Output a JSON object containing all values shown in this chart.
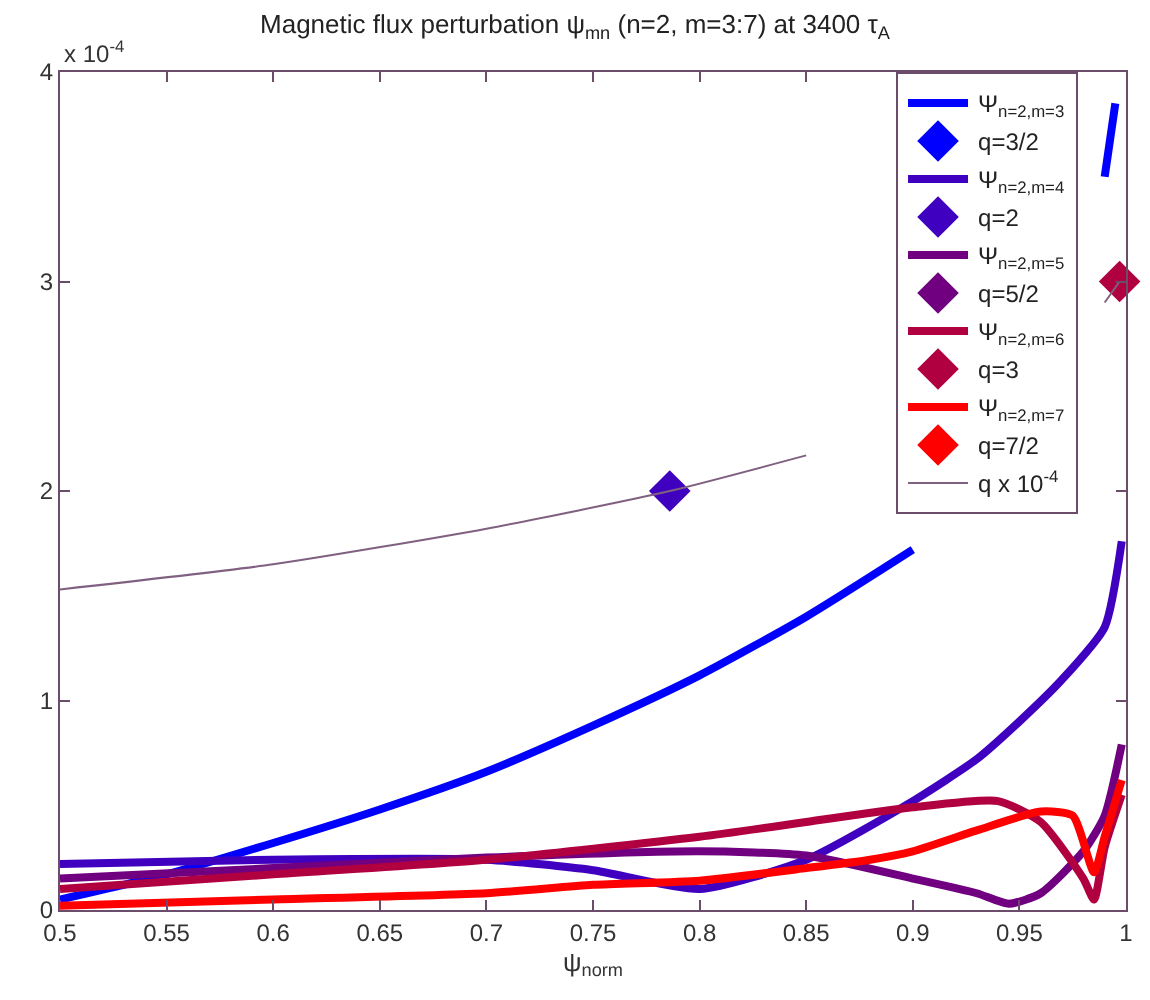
{
  "chart_data": {
    "type": "line",
    "title": "Magnetic flux perturbation ψ$_{mn}$ (n=2, m=3:7) at 3400 τ$_{A}$",
    "xlabel": "ψ$_{norm}$",
    "xlim": [
      0.5,
      1
    ],
    "xticks": [
      0.5,
      0.55,
      0.6,
      0.65,
      0.7,
      0.75,
      0.8,
      0.85,
      0.9,
      0.95,
      1
    ],
    "ylim": [
      0,
      4
    ],
    "yticks": [
      0,
      1,
      2,
      3,
      4
    ],
    "annotations": [
      "x 10$^{-4}$"
    ],
    "grid": false,
    "legend": "top right",
    "line_style": "solid",
    "series": [
      {
        "name": "Ψ$_{n=2,m=3}$",
        "marker": "none",
        "color": "#0000ff",
        "x": [
          0.5,
          0.55,
          0.6,
          0.65,
          0.7,
          0.75,
          0.8,
          0.85,
          0.9,
          0.93,
          0.96,
          0.98,
          0.99,
          0.995
        ],
        "values": [
          0.05,
          0.17,
          0.32,
          0.48,
          0.66,
          0.88,
          1.12,
          1.4,
          1.72,
          null,
          null,
          null,
          3.5,
          3.85
        ]
      },
      {
        "name": "q=3/2",
        "type": "scatter",
        "marker": "diamond",
        "color": "#0000ff",
        "x": [
          null
        ],
        "values": [
          null
        ]
      },
      {
        "name": "Ψ$_{n=2,m=4}$",
        "marker": "none",
        "color": "#4000c0",
        "x": [
          0.5,
          0.6,
          0.7,
          0.75,
          0.8,
          0.85,
          0.9,
          0.93,
          0.95,
          0.97,
          0.99,
          0.998
        ],
        "values": [
          0.22,
          0.24,
          0.24,
          0.19,
          0.1,
          0.24,
          0.52,
          0.72,
          0.9,
          1.1,
          1.35,
          1.76
        ]
      },
      {
        "name": "q=2",
        "type": "scatter",
        "marker": "diamond",
        "color": "#4000c0",
        "x": [
          0.786
        ],
        "values": [
          2
        ]
      },
      {
        "name": "Ψ$_{n=2,m=5}$",
        "marker": "none",
        "color": "#700080",
        "x": [
          0.5,
          0.6,
          0.7,
          0.8,
          0.85,
          0.9,
          0.93,
          0.945,
          0.96,
          0.98,
          0.99,
          0.998
        ],
        "values": [
          0.15,
          0.2,
          0.25,
          0.28,
          0.26,
          0.15,
          0.08,
          0.03,
          0.08,
          0.28,
          0.45,
          0.79
        ]
      },
      {
        "name": "q=5/2",
        "type": "scatter",
        "marker": "diamond",
        "color": "#700080",
        "x": [
          null
        ],
        "values": [
          null
        ]
      },
      {
        "name": "Ψ$_{n=2,m=6}$",
        "marker": "none",
        "color": "#b00040",
        "x": [
          0.5,
          0.6,
          0.7,
          0.8,
          0.85,
          0.9,
          0.94,
          0.96,
          0.98,
          0.985,
          0.99,
          0.998
        ],
        "values": [
          0.1,
          0.17,
          0.24,
          0.35,
          0.42,
          0.49,
          0.52,
          0.42,
          0.15,
          0.05,
          0.3,
          0.55
        ]
      },
      {
        "name": "q=3",
        "type": "scatter",
        "marker": "diamond",
        "color": "#b00040",
        "x": [
          0.997
        ],
        "values": [
          3
        ]
      },
      {
        "name": "Ψ$_{n=2,m=7}$",
        "marker": "none",
        "color": "#ff0000",
        "x": [
          0.5,
          0.6,
          0.7,
          0.75,
          0.8,
          0.85,
          0.88,
          0.9,
          0.93,
          0.96,
          0.975,
          0.985,
          0.99,
          0.998
        ],
        "values": [
          0.02,
          0.05,
          0.08,
          0.12,
          0.14,
          0.2,
          0.24,
          0.28,
          0.38,
          0.47,
          0.45,
          0.18,
          0.35,
          0.62
        ]
      },
      {
        "name": "q=7/2",
        "type": "scatter",
        "marker": "diamond",
        "color": "#ff0000",
        "x": [
          null
        ],
        "values": [
          null
        ]
      },
      {
        "name": "q x 10$^{-4}$",
        "marker": "none",
        "color": "#806080",
        "x": [
          0.5,
          0.6,
          0.7,
          0.786,
          0.85,
          0.9,
          0.95,
          0.97,
          0.99,
          0.997
        ],
        "values": [
          1.53,
          1.65,
          1.82,
          2.0,
          2.17,
          null,
          null,
          null,
          2.9,
          3.0
        ]
      }
    ]
  }
}
